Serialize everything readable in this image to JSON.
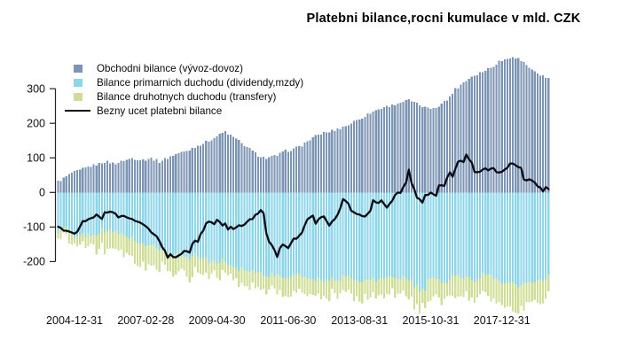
{
  "title": "Platebni bilance,rocni kumulace v mld. CZK",
  "legend": [
    {
      "label": "Obchodni bilance (vývoz-dovoz)",
      "color": "#7C95B4",
      "type": "box"
    },
    {
      "label": "Bilance primarnich duchodu (dividendy,mzdy)",
      "color": "#8DD5E8",
      "type": "box"
    },
    {
      "label": "Bilance druhotnych duchodu (transfery)",
      "color": "#CFDE96",
      "type": "box"
    },
    {
      "label": "Bezny ucet platebni bilance",
      "color": "#0B0B16",
      "type": "line"
    }
  ],
  "chart_data": {
    "type": "bar",
    "subtype": "stacked-monthly-bars-with-line",
    "title": "Platebni bilance,rocni kumulace v mld. CZK",
    "ylabel": "mld. CZK",
    "ylim": [
      -380,
      420
    ],
    "grid": false,
    "legend_position": "top-left",
    "months_total": 180,
    "x_start_month": "2004-06",
    "y_ticks": [
      300,
      200,
      100,
      0,
      -100,
      -200
    ],
    "x_ticks": [
      {
        "label": "2004-12-31",
        "month": 6
      },
      {
        "label": "2007-02-28",
        "month": 32
      },
      {
        "label": "2009-04-30",
        "month": 58
      },
      {
        "label": "2011-06-30",
        "month": 84
      },
      {
        "label": "2013-08-31",
        "month": 110
      },
      {
        "label": "2015-10-31",
        "month": 136
      },
      {
        "label": "2017-12-31",
        "month": 162
      }
    ],
    "series": [
      {
        "name": "Obchodni bilance (vývoz-dovoz)",
        "color": "#7C95B4",
        "role": "bar-positive",
        "noise": 4,
        "keypoints": [
          [
            0,
            31
          ],
          [
            2,
            40
          ],
          [
            5,
            56
          ],
          [
            8,
            64
          ],
          [
            11,
            74
          ],
          [
            14,
            80
          ],
          [
            17,
            89
          ],
          [
            21,
            84
          ],
          [
            24,
            92
          ],
          [
            27,
            99
          ],
          [
            31,
            94
          ],
          [
            34,
            99
          ],
          [
            37,
            89
          ],
          [
            40,
            100
          ],
          [
            44,
            114
          ],
          [
            47,
            120
          ],
          [
            50,
            132
          ],
          [
            54,
            145
          ],
          [
            57,
            158
          ],
          [
            61,
            176
          ],
          [
            63,
            165
          ],
          [
            66,
            148
          ],
          [
            70,
            125
          ],
          [
            73,
            107
          ],
          [
            76,
            99
          ],
          [
            80,
            107
          ],
          [
            83,
            120
          ],
          [
            86,
            125
          ],
          [
            89,
            137
          ],
          [
            93,
            158
          ],
          [
            96,
            170
          ],
          [
            99,
            176
          ],
          [
            102,
            183
          ],
          [
            106,
            196
          ],
          [
            109,
            209
          ],
          [
            112,
            221
          ],
          [
            115,
            234
          ],
          [
            119,
            247
          ],
          [
            122,
            252
          ],
          [
            125,
            260
          ],
          [
            128,
            267
          ],
          [
            132,
            252
          ],
          [
            135,
            242
          ],
          [
            138,
            247
          ],
          [
            142,
            267
          ],
          [
            145,
            298
          ],
          [
            148,
            318
          ],
          [
            151,
            336
          ],
          [
            155,
            349
          ],
          [
            158,
            361
          ],
          [
            161,
            379
          ],
          [
            164,
            387
          ],
          [
            166,
            394
          ],
          [
            168,
            387
          ],
          [
            171,
            369
          ],
          [
            174,
            349
          ],
          [
            177,
            336
          ],
          [
            179,
            328
          ]
        ]
      },
      {
        "name": "Bilance primarnich duchodu (dividendy,mzdy)",
        "color": "#8DD5E8",
        "role": "bar-negative",
        "noise": 8,
        "keypoints": [
          [
            0,
            -109
          ],
          [
            3,
            -105
          ],
          [
            6,
            -135
          ],
          [
            9,
            -122
          ],
          [
            13,
            -127
          ],
          [
            16,
            -105
          ],
          [
            19,
            -114
          ],
          [
            22,
            -118
          ],
          [
            26,
            -127
          ],
          [
            29,
            -143
          ],
          [
            32,
            -156
          ],
          [
            35,
            -152
          ],
          [
            39,
            -168
          ],
          [
            42,
            -186
          ],
          [
            45,
            -178
          ],
          [
            48,
            -186
          ],
          [
            50,
            -178
          ],
          [
            53,
            -193
          ],
          [
            57,
            -203
          ],
          [
            60,
            -198
          ],
          [
            63,
            -211
          ],
          [
            66,
            -219
          ],
          [
            70,
            -224
          ],
          [
            73,
            -229
          ],
          [
            76,
            -237
          ],
          [
            80,
            -242
          ],
          [
            83,
            -244
          ],
          [
            86,
            -240
          ],
          [
            93,
            -248
          ],
          [
            99,
            -252
          ],
          [
            106,
            -245
          ],
          [
            112,
            -255
          ],
          [
            119,
            -248
          ],
          [
            125,
            -244
          ],
          [
            128,
            -254
          ],
          [
            132,
            -280
          ],
          [
            134,
            -293
          ],
          [
            135,
            -244
          ],
          [
            138,
            -254
          ],
          [
            142,
            -262
          ],
          [
            145,
            -237
          ],
          [
            148,
            -244
          ],
          [
            151,
            -254
          ],
          [
            155,
            -237
          ],
          [
            158,
            -244
          ],
          [
            161,
            -254
          ],
          [
            164,
            -262
          ],
          [
            168,
            -270
          ],
          [
            171,
            -262
          ],
          [
            174,
            -262
          ],
          [
            177,
            -254
          ],
          [
            179,
            -244
          ]
        ]
      },
      {
        "name": "Bilance druhotnych duchodu (transfery)",
        "color": "#CFDE96",
        "role": "bar-negative-stacked-below",
        "noise": 14,
        "keypoints": [
          [
            0,
            -21
          ],
          [
            6,
            -20
          ],
          [
            13,
            -38
          ],
          [
            19,
            -59
          ],
          [
            26,
            -59
          ],
          [
            32,
            -68
          ],
          [
            39,
            -43
          ],
          [
            42,
            -51
          ],
          [
            48,
            -56
          ],
          [
            57,
            -40
          ],
          [
            63,
            -35
          ],
          [
            70,
            -40
          ],
          [
            76,
            -45
          ],
          [
            83,
            -50
          ],
          [
            89,
            -45
          ],
          [
            96,
            -55
          ],
          [
            102,
            -45
          ],
          [
            109,
            -50
          ],
          [
            115,
            -55
          ],
          [
            122,
            -45
          ],
          [
            128,
            -50
          ],
          [
            135,
            -55
          ],
          [
            142,
            -50
          ],
          [
            148,
            -55
          ],
          [
            155,
            -60
          ],
          [
            161,
            -70
          ],
          [
            168,
            -75
          ],
          [
            174,
            -65
          ],
          [
            179,
            -55
          ]
        ]
      },
      {
        "name": "Bezny ucet platebni bilance",
        "color": "#0B0B16",
        "role": "line",
        "noise": 3,
        "keypoints": [
          [
            0,
            -97
          ],
          [
            2,
            -108
          ],
          [
            4,
            -112
          ],
          [
            6,
            -122
          ],
          [
            8,
            -100
          ],
          [
            9,
            -85
          ],
          [
            11,
            -80
          ],
          [
            14,
            -66
          ],
          [
            16,
            -78
          ],
          [
            17,
            -60
          ],
          [
            19,
            -55
          ],
          [
            21,
            -60
          ],
          [
            22,
            -70
          ],
          [
            24,
            -65
          ],
          [
            27,
            -78
          ],
          [
            31,
            -92
          ],
          [
            34,
            -114
          ],
          [
            36,
            -128
          ],
          [
            37,
            -142
          ],
          [
            39,
            -170
          ],
          [
            40,
            -186
          ],
          [
            41,
            -180
          ],
          [
            43,
            -190
          ],
          [
            45,
            -180
          ],
          [
            46,
            -169
          ],
          [
            48,
            -173
          ],
          [
            49,
            -152
          ],
          [
            50,
            -139
          ],
          [
            51,
            -143
          ],
          [
            52,
            -120
          ],
          [
            53,
            -109
          ],
          [
            54,
            -88
          ],
          [
            55,
            -84
          ],
          [
            57,
            -91
          ],
          [
            58,
            -82
          ],
          [
            60,
            -93
          ],
          [
            61,
            -91
          ],
          [
            62,
            -105
          ],
          [
            63,
            -101
          ],
          [
            64,
            -109
          ],
          [
            65,
            -99
          ],
          [
            66,
            -93
          ],
          [
            67,
            -97
          ],
          [
            69,
            -84
          ],
          [
            70,
            -76
          ],
          [
            71,
            -78
          ],
          [
            72,
            -67
          ],
          [
            74,
            -50
          ],
          [
            75,
            -63
          ],
          [
            76,
            -118
          ],
          [
            77,
            -140
          ],
          [
            78,
            -150
          ],
          [
            79,
            -170
          ],
          [
            80,
            -186
          ],
          [
            81,
            -160
          ],
          [
            82,
            -152
          ],
          [
            84,
            -163
          ],
          [
            86,
            -135
          ],
          [
            87,
            -137
          ],
          [
            89,
            -114
          ],
          [
            90,
            -95
          ],
          [
            91,
            -76
          ],
          [
            93,
            -67
          ],
          [
            94,
            -88
          ],
          [
            95,
            -76
          ],
          [
            97,
            -67
          ],
          [
            99,
            -93
          ],
          [
            100,
            -85
          ],
          [
            101,
            -80
          ],
          [
            103,
            -45
          ],
          [
            104,
            -20
          ],
          [
            106,
            -33
          ],
          [
            107,
            -54
          ],
          [
            109,
            -60
          ],
          [
            110,
            -63
          ],
          [
            112,
            -71
          ],
          [
            114,
            -50
          ],
          [
            115,
            -25
          ],
          [
            117,
            -33
          ],
          [
            118,
            -25
          ],
          [
            120,
            -41
          ],
          [
            122,
            -25
          ],
          [
            123,
            -5
          ],
          [
            125,
            0
          ],
          [
            127,
            30
          ],
          [
            128,
            69
          ],
          [
            129,
            25
          ],
          [
            130,
            10
          ],
          [
            131,
            -15
          ],
          [
            133,
            -28
          ],
          [
            134,
            -8
          ],
          [
            136,
            -3
          ],
          [
            138,
            -12
          ],
          [
            139,
            18
          ],
          [
            141,
            20
          ],
          [
            142,
            45
          ],
          [
            143,
            61
          ],
          [
            144,
            48
          ],
          [
            145,
            70
          ],
          [
            146,
            86
          ],
          [
            147,
            94
          ],
          [
            148,
            88
          ],
          [
            149,
            107
          ],
          [
            150,
            96
          ],
          [
            151,
            89
          ],
          [
            152,
            61
          ],
          [
            154,
            58
          ],
          [
            156,
            69
          ],
          [
            157,
            64
          ],
          [
            159,
            69
          ],
          [
            160,
            61
          ],
          [
            162,
            58
          ],
          [
            164,
            74
          ],
          [
            165,
            81
          ],
          [
            167,
            81
          ],
          [
            169,
            69
          ],
          [
            170,
            36
          ],
          [
            172,
            38
          ],
          [
            174,
            31
          ],
          [
            175,
            18
          ],
          [
            177,
            5
          ],
          [
            178,
            13
          ],
          [
            179,
            12
          ]
        ]
      }
    ]
  },
  "axis": {
    "tick_color": "#222222",
    "label_color": "#111111"
  }
}
